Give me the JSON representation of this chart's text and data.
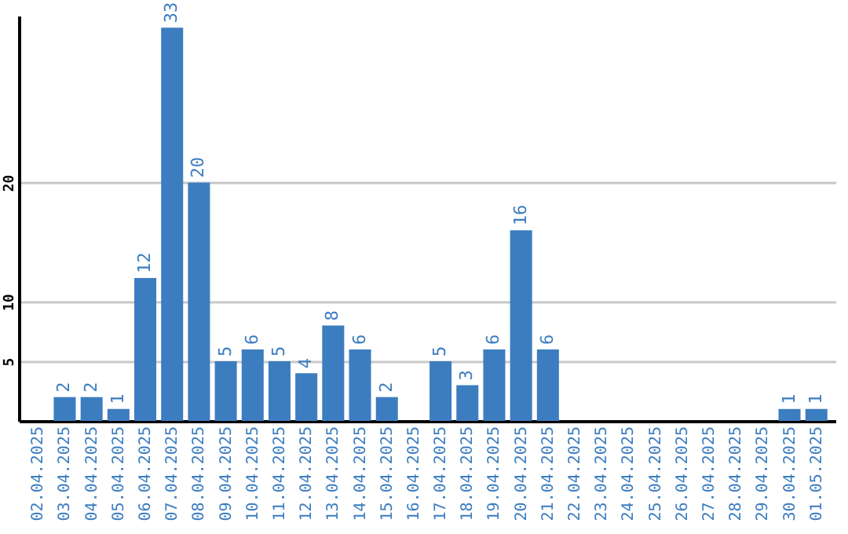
{
  "chart_data": {
    "type": "bar",
    "categories": [
      "02.04.2025",
      "03.04.2025",
      "04.04.2025",
      "05.04.2025",
      "06.04.2025",
      "07.04.2025",
      "08.04.2025",
      "09.04.2025",
      "10.04.2025",
      "11.04.2025",
      "12.04.2025",
      "13.04.2025",
      "14.04.2025",
      "15.04.2025",
      "16.04.2025",
      "17.04.2025",
      "18.04.2025",
      "19.04.2025",
      "20.04.2025",
      "21.04.2025",
      "22.04.2025",
      "23.04.2025",
      "24.04.2025",
      "25.04.2025",
      "26.04.2025",
      "27.04.2025",
      "28.04.2025",
      "29.04.2025",
      "30.04.2025",
      "01.05.2025"
    ],
    "values": [
      null,
      2,
      2,
      1,
      12,
      33,
      20,
      5,
      6,
      5,
      4,
      8,
      6,
      2,
      null,
      5,
      3,
      6,
      16,
      6,
      null,
      null,
      null,
      null,
      null,
      null,
      null,
      null,
      1,
      1
    ],
    "color": "#3c7dc0",
    "ylim": [
      0,
      34
    ],
    "yticks": [
      5,
      10,
      20
    ],
    "grid": "y",
    "data_labels": true
  }
}
